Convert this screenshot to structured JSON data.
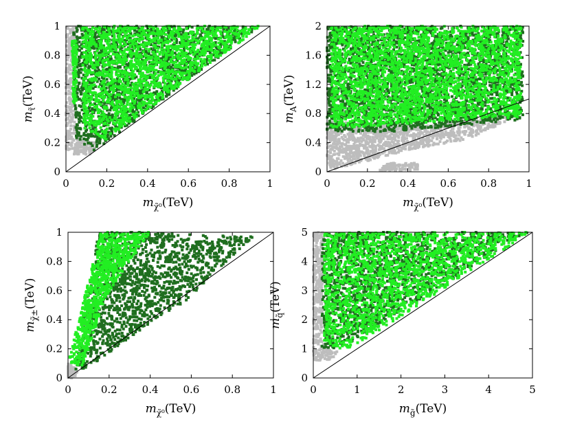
{
  "chart_data": [
    {
      "type": "scatter",
      "id": "A",
      "xlabel": {
        "sym": "m",
        "sub": "χ̃⁰",
        "unit": "(TeV)"
      },
      "ylabel": {
        "sym": "m",
        "sub": "τ̃",
        "unit": "(TeV)"
      },
      "xlim": [
        0,
        1
      ],
      "ylim": [
        0,
        1
      ],
      "xticks": [
        0,
        0.2,
        0.4,
        0.6,
        0.8,
        1
      ],
      "xtick_labels": [
        "0",
        "0.2",
        "0.4",
        "0.6",
        "0.8",
        "1"
      ],
      "yticks": [
        0,
        0.2,
        0.4,
        0.6,
        0.8,
        1
      ],
      "ytick_labels": [
        "0",
        "0.2",
        "0.4",
        "0.6",
        "0.8",
        "1"
      ],
      "diagonal": true,
      "series": [
        {
          "name": "gray",
          "color": "#bdbdbd",
          "regions": [
            [
              [
                0,
                0.15
              ],
              [
                0,
                1
              ],
              [
                0.05,
                1
              ],
              [
                0.04,
                0.35
              ],
              [
                0.1,
                0.12
              ]
            ],
            [
              [
                0.04,
                0.12
              ],
              [
                0.12,
                0.12
              ],
              [
                0.16,
                0.2
              ],
              [
                0.06,
                0.22
              ]
            ]
          ]
        },
        {
          "name": "dark green",
          "color": "#1f6e1f",
          "regions": [
            [
              [
                0.05,
                0.22
              ],
              [
                0.03,
                1
              ],
              [
                0.95,
                1
              ],
              [
                0.14,
                0.14
              ]
            ]
          ]
        },
        {
          "name": "bright green",
          "color": "#22ee22",
          "regions": [
            [
              [
                0.085,
                0.3
              ],
              [
                0.08,
                1
              ],
              [
                0.96,
                1
              ],
              [
                0.4,
                0.43
              ],
              [
                0.2,
                0.22
              ]
            ],
            [
              [
                0.035,
                0.45
              ],
              [
                0.03,
                0.9
              ],
              [
                0.055,
                0.9
              ],
              [
                0.05,
                0.45
              ]
            ]
          ]
        }
      ]
    },
    {
      "type": "scatter",
      "id": "B",
      "xlabel": {
        "sym": "m",
        "sub": "χ̃⁰",
        "unit": "(TeV)"
      },
      "ylabel": {
        "sym": "m",
        "sub": "A",
        "unit": "(TeV)"
      },
      "xlim": [
        0,
        1
      ],
      "ylim": [
        0,
        2
      ],
      "xticks": [
        0,
        0.2,
        0.4,
        0.6,
        0.8,
        1
      ],
      "xtick_labels": [
        "0",
        "0.2",
        "0.4",
        "0.6",
        "0.8",
        "1"
      ],
      "yticks": [
        0,
        0.4,
        0.8,
        1.2,
        1.6,
        2
      ],
      "ytick_labels": [
        "0",
        "0.4",
        "0.8",
        "1.2",
        "1.6",
        "2"
      ],
      "diagonal": true,
      "series": [
        {
          "name": "gray",
          "color": "#bdbdbd",
          "regions": [
            [
              [
                0,
                0
              ],
              [
                0,
                0.7
              ],
              [
                0.4,
                0.62
              ],
              [
                0.95,
                0.78
              ],
              [
                0.7,
                0.45
              ],
              [
                0.4,
                0.3
              ],
              [
                0.2,
                0.15
              ],
              [
                0.05,
                0.05
              ]
            ],
            [
              [
                0.25,
                0.02
              ],
              [
                0.45,
                0.02
              ],
              [
                0.45,
                0.12
              ],
              [
                0.3,
                0.12
              ]
            ]
          ]
        },
        {
          "name": "dark green",
          "color": "#1f6e1f",
          "regions": [
            [
              [
                0,
                0.55
              ],
              [
                0,
                2
              ],
              [
                0.97,
                2
              ],
              [
                0.97,
                0.72
              ],
              [
                0.6,
                0.62
              ],
              [
                0.3,
                0.55
              ]
            ]
          ]
        },
        {
          "name": "bright green",
          "color": "#22ee22",
          "regions": [
            [
              [
                0.02,
                0.6
              ],
              [
                0.02,
                2
              ],
              [
                0.96,
                2
              ],
              [
                0.96,
                0.75
              ],
              [
                0.5,
                0.68
              ],
              [
                0.1,
                0.6
              ]
            ]
          ]
        }
      ]
    },
    {
      "type": "scatter",
      "id": "C",
      "xlabel": {
        "sym": "m",
        "sub": "χ̃⁰",
        "unit": "(TeV)"
      },
      "ylabel": {
        "sym": "m",
        "sub": "χ̃±",
        "unit": "(TeV)"
      },
      "xlim": [
        0,
        1
      ],
      "ylim": [
        0,
        1
      ],
      "xticks": [
        0,
        0.2,
        0.4,
        0.6,
        0.8,
        1
      ],
      "xtick_labels": [
        "0",
        "0.2",
        "0.4",
        "0.6",
        "0.8",
        "1"
      ],
      "yticks": [
        0,
        0.2,
        0.4,
        0.6,
        0.8,
        1
      ],
      "ytick_labels": [
        "0",
        "0.2",
        "0.4",
        "0.6",
        "0.8",
        "1"
      ],
      "diagonal": true,
      "series": [
        {
          "name": "gray",
          "color": "#bdbdbd",
          "regions": [
            [
              [
                0,
                0
              ],
              [
                0,
                0.1
              ],
              [
                0.05,
                0.05
              ],
              [
                0.03,
                0
              ]
            ]
          ]
        },
        {
          "name": "dark green",
          "color": "#1f6e1f",
          "regions": [
            [
              [
                0.03,
                0.05
              ],
              [
                0.15,
                1
              ],
              [
                0.35,
                1
              ],
              [
                0.9,
                0.97
              ],
              [
                0.55,
                0.5
              ],
              [
                0.4,
                0.38
              ],
              [
                0.1,
                0.07
              ]
            ]
          ]
        },
        {
          "name": "bright green",
          "color": "#22ee22",
          "regions": [
            [
              [
                0,
                0.1
              ],
              [
                0.16,
                1
              ],
              [
                0.4,
                1
              ],
              [
                0.25,
                0.7
              ],
              [
                0.18,
                0.55
              ],
              [
                0.1,
                0.2
              ],
              [
                0.07,
                0.08
              ]
            ]
          ]
        }
      ]
    },
    {
      "type": "scatter",
      "id": "D",
      "xlabel": {
        "sym": "m",
        "sub": "g̃",
        "unit": "(TeV)"
      },
      "ylabel": {
        "sym": "m",
        "sub": "q̃",
        "unit": "(TeV)"
      },
      "xlim": [
        0,
        5
      ],
      "ylim": [
        0,
        5
      ],
      "xticks": [
        0,
        1,
        2,
        3,
        4,
        5
      ],
      "xtick_labels": [
        "0",
        "1",
        "2",
        "3",
        "4",
        "5"
      ],
      "yticks": [
        0,
        1,
        2,
        3,
        4,
        5
      ],
      "ytick_labels": [
        "0",
        "1",
        "2",
        "3",
        "4",
        "5"
      ],
      "diagonal": true,
      "series": [
        {
          "name": "gray",
          "color": "#bdbdbd",
          "regions": [
            [
              [
                0,
                0.6
              ],
              [
                0,
                5
              ],
              [
                0.25,
                5
              ],
              [
                0.2,
                1.2
              ],
              [
                0.55,
                0.9
              ],
              [
                0.4,
                0.6
              ]
            ]
          ]
        },
        {
          "name": "dark green",
          "color": "#1f6e1f",
          "regions": [
            [
              [
                0.2,
                1
              ],
              [
                0.2,
                5
              ],
              [
                4.9,
                5
              ],
              [
                0.6,
                1
              ]
            ]
          ]
        },
        {
          "name": "bright green",
          "color": "#22ee22",
          "regions": [
            [
              [
                0.25,
                1.3
              ],
              [
                0.25,
                5
              ],
              [
                4.95,
                5
              ],
              [
                0.9,
                1.05
              ],
              [
                0.55,
                1
              ]
            ]
          ]
        }
      ]
    }
  ]
}
